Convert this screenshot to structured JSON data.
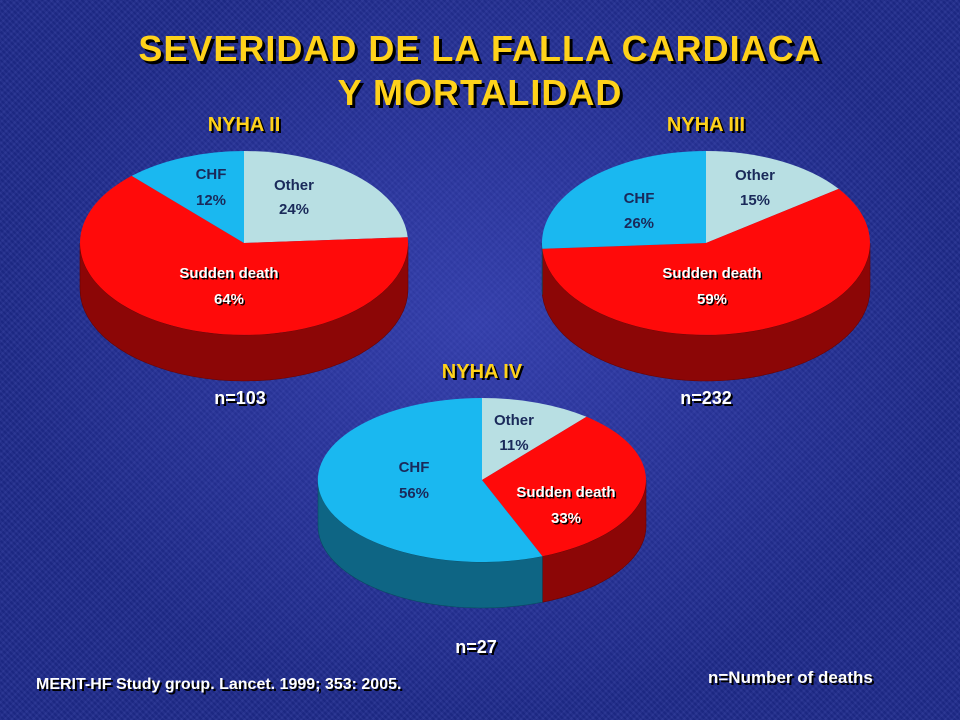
{
  "title_line1": "SEVERIDAD DE LA FALLA CARDIACA",
  "title_line2": "Y MORTALIDAD",
  "citation": "MERIT-HF Study group. Lancet. 1999; 353: 2005.",
  "footnote": "n=Number of deaths",
  "colors": {
    "other": "#b8dfe3",
    "sudden_death": "#ff0a0a",
    "chf": "#1ab8f0",
    "title": "#ffd21a"
  },
  "chart_data": [
    {
      "type": "pie",
      "title": "NYHA II",
      "n_label": "n=103",
      "slices": [
        {
          "label": "Other",
          "value": 24,
          "pct_text": "24%",
          "color_key": "other"
        },
        {
          "label": "Sudden death",
          "value": 64,
          "pct_text": "64%",
          "color_key": "sudden_death"
        },
        {
          "label": "CHF",
          "value": 12,
          "pct_text": "12%",
          "color_key": "chf"
        }
      ]
    },
    {
      "type": "pie",
      "title": "NYHA III",
      "n_label": "n=232",
      "slices": [
        {
          "label": "Other",
          "value": 15,
          "pct_text": "15%",
          "color_key": "other"
        },
        {
          "label": "Sudden death",
          "value": 59,
          "pct_text": "59%",
          "color_key": "sudden_death"
        },
        {
          "label": "CHF",
          "value": 26,
          "pct_text": "26%",
          "color_key": "chf"
        }
      ]
    },
    {
      "type": "pie",
      "title": "NYHA IV",
      "n_label": "n=27",
      "slices": [
        {
          "label": "Other",
          "value": 11,
          "pct_text": "11%",
          "color_key": "other"
        },
        {
          "label": "Sudden death",
          "value": 33,
          "pct_text": "33%",
          "color_key": "sudden_death"
        },
        {
          "label": "CHF",
          "value": 56,
          "pct_text": "56%",
          "color_key": "chf"
        }
      ]
    }
  ]
}
